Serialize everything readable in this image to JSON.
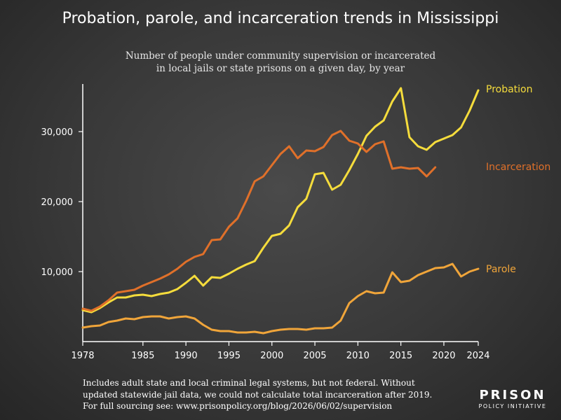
{
  "title": "Probation, parole, and incarceration trends in Mississippi",
  "subtitle_lines": [
    "Number of people under community supervision or incarcerated",
    "in local jails or state prisons on a given day, by year"
  ],
  "footnote_lines": [
    "Includes adult state and local criminal legal systems, but not federal. Without",
    "updated statewide jail data, we could not calculate total incarceration after 2019.",
    "For full sourcing see: www.prisonpolicy.org/blog/2026/06/02/supervision"
  ],
  "logo": {
    "line1": "PRISON",
    "line2": "POLICY INITIATIVE"
  },
  "colors": {
    "probation": "#f5dc3c",
    "incarceration": "#e0702a",
    "parole": "#f0a53a",
    "axis": "#ffffff",
    "text": "#ffffff"
  },
  "chart_data": {
    "type": "line",
    "title": "Probation, parole, and incarceration trends in Mississippi",
    "xlabel": "",
    "ylabel": "",
    "xlim": [
      1978,
      2024
    ],
    "ylim": [
      0,
      38000
    ],
    "x_ticks": [
      "1978",
      "1985",
      "1990",
      "1995",
      "2000",
      "2005",
      "2010",
      "2015",
      "2020",
      "2024"
    ],
    "y_ticks": [
      "10,000",
      "20,000",
      "30,000"
    ],
    "y_tick_values": [
      10000,
      20000,
      30000
    ],
    "grid": false,
    "legend": "labels at line ends (right)",
    "series": [
      {
        "name": "Probation",
        "key": "probation",
        "points": [
          [
            1978,
            4500
          ],
          [
            1979,
            4200
          ],
          [
            1980,
            4800
          ],
          [
            1981,
            5600
          ],
          [
            1982,
            6300
          ],
          [
            1983,
            6300
          ],
          [
            1984,
            6600
          ],
          [
            1985,
            6700
          ],
          [
            1986,
            6500
          ],
          [
            1987,
            6800
          ],
          [
            1988,
            7000
          ],
          [
            1989,
            7500
          ],
          [
            1990,
            8400
          ],
          [
            1991,
            9400
          ],
          [
            1992,
            8000
          ],
          [
            1993,
            9200
          ],
          [
            1994,
            9100
          ],
          [
            1995,
            9700
          ],
          [
            1996,
            10400
          ],
          [
            1997,
            11000
          ],
          [
            1998,
            11500
          ],
          [
            1999,
            13400
          ],
          [
            2000,
            15100
          ],
          [
            2001,
            15400
          ],
          [
            2002,
            16600
          ],
          [
            2003,
            19200
          ],
          [
            2004,
            20400
          ],
          [
            2005,
            23900
          ],
          [
            2006,
            24100
          ],
          [
            2007,
            21700
          ],
          [
            2008,
            22400
          ],
          [
            2009,
            24500
          ],
          [
            2010,
            26800
          ],
          [
            2011,
            29400
          ],
          [
            2012,
            30700
          ],
          [
            2013,
            31600
          ],
          [
            2014,
            34300
          ],
          [
            2015,
            36200
          ],
          [
            2016,
            29200
          ],
          [
            2017,
            27900
          ],
          [
            2018,
            27400
          ],
          [
            2019,
            28500
          ],
          [
            2020,
            29000
          ],
          [
            2021,
            29500
          ],
          [
            2022,
            30600
          ],
          [
            2023,
            33000
          ],
          [
            2024,
            35900
          ]
        ]
      },
      {
        "name": "Incarceration",
        "key": "incarceration",
        "points": [
          [
            1978,
            4700
          ],
          [
            1979,
            4400
          ],
          [
            1980,
            5000
          ],
          [
            1981,
            5900
          ],
          [
            1982,
            7000
          ],
          [
            1983,
            7200
          ],
          [
            1984,
            7400
          ],
          [
            1985,
            8000
          ],
          [
            1986,
            8500
          ],
          [
            1987,
            9000
          ],
          [
            1988,
            9600
          ],
          [
            1989,
            10400
          ],
          [
            1990,
            11400
          ],
          [
            1991,
            12100
          ],
          [
            1992,
            12500
          ],
          [
            1993,
            14500
          ],
          [
            1994,
            14600
          ],
          [
            1995,
            16400
          ],
          [
            1996,
            17600
          ],
          [
            1997,
            20100
          ],
          [
            1998,
            22900
          ],
          [
            1999,
            23600
          ],
          [
            2000,
            25200
          ],
          [
            2001,
            26800
          ],
          [
            2002,
            27900
          ],
          [
            2003,
            26200
          ],
          [
            2004,
            27300
          ],
          [
            2005,
            27200
          ],
          [
            2006,
            27800
          ],
          [
            2007,
            29500
          ],
          [
            2008,
            30100
          ],
          [
            2009,
            28700
          ],
          [
            2010,
            28300
          ],
          [
            2011,
            27100
          ],
          [
            2012,
            28200
          ],
          [
            2013,
            28600
          ],
          [
            2014,
            24700
          ],
          [
            2015,
            24900
          ],
          [
            2016,
            24700
          ],
          [
            2017,
            24800
          ],
          [
            2018,
            23600
          ],
          [
            2019,
            24900
          ]
        ]
      },
      {
        "name": "Parole",
        "key": "parole",
        "points": [
          [
            1978,
            2000
          ],
          [
            1979,
            2200
          ],
          [
            1980,
            2300
          ],
          [
            1981,
            2800
          ],
          [
            1982,
            3000
          ],
          [
            1983,
            3300
          ],
          [
            1984,
            3200
          ],
          [
            1985,
            3500
          ],
          [
            1986,
            3600
          ],
          [
            1987,
            3600
          ],
          [
            1988,
            3300
          ],
          [
            1989,
            3500
          ],
          [
            1990,
            3600
          ],
          [
            1991,
            3300
          ],
          [
            1992,
            2400
          ],
          [
            1993,
            1700
          ],
          [
            1994,
            1500
          ],
          [
            1995,
            1500
          ],
          [
            1996,
            1300
          ],
          [
            1997,
            1300
          ],
          [
            1998,
            1400
          ],
          [
            1999,
            1200
          ],
          [
            2000,
            1500
          ],
          [
            2001,
            1700
          ],
          [
            2002,
            1800
          ],
          [
            2003,
            1800
          ],
          [
            2004,
            1700
          ],
          [
            2005,
            1900
          ],
          [
            2006,
            1900
          ],
          [
            2007,
            2000
          ],
          [
            2008,
            3000
          ],
          [
            2009,
            5500
          ],
          [
            2010,
            6500
          ],
          [
            2011,
            7200
          ],
          [
            2012,
            6900
          ],
          [
            2013,
            7000
          ],
          [
            2014,
            9900
          ],
          [
            2015,
            8500
          ],
          [
            2016,
            8700
          ],
          [
            2017,
            9500
          ],
          [
            2018,
            10000
          ],
          [
            2019,
            10500
          ],
          [
            2020,
            10600
          ],
          [
            2021,
            11100
          ],
          [
            2022,
            9300
          ],
          [
            2023,
            10000
          ],
          [
            2024,
            10400
          ]
        ]
      }
    ]
  }
}
